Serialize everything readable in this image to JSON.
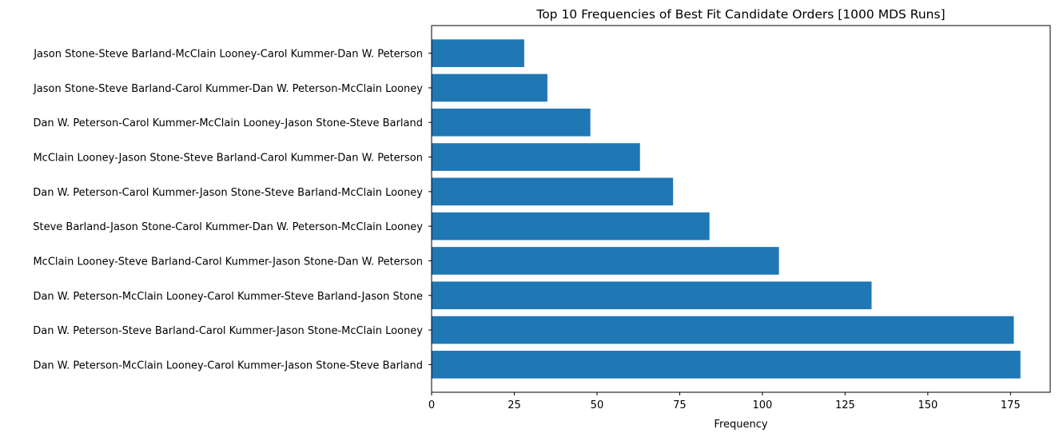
{
  "chart_data": {
    "type": "bar",
    "orientation": "horizontal",
    "title": "Top 10 Frequencies of Best Fit Candidate Orders [1000 MDS Runs]",
    "xlabel": "Frequency",
    "ylabel": "",
    "xlim": [
      0,
      187
    ],
    "xticks": [
      0,
      25,
      50,
      75,
      100,
      125,
      150,
      175
    ],
    "grid": false,
    "bar_color": "#1f77b4",
    "categories": [
      "Dan W. Peterson-McClain Looney-Carol Kummer-Jason Stone-Steve Barland",
      "Dan W. Peterson-Steve Barland-Carol Kummer-Jason Stone-McClain Looney",
      "Dan W. Peterson-McClain Looney-Carol Kummer-Steve Barland-Jason Stone",
      "McClain Looney-Steve Barland-Carol Kummer-Jason Stone-Dan W. Peterson",
      "Steve Barland-Jason Stone-Carol Kummer-Dan W. Peterson-McClain Looney",
      "Dan W. Peterson-Carol Kummer-Jason Stone-Steve Barland-McClain Looney",
      "McClain Looney-Jason Stone-Steve Barland-Carol Kummer-Dan W. Peterson",
      "Dan W. Peterson-Carol Kummer-McClain Looney-Jason Stone-Steve Barland",
      "Jason Stone-Steve Barland-Carol Kummer-Dan W. Peterson-McClain Looney",
      "Jason Stone-Steve Barland-McClain Looney-Carol Kummer-Dan W. Peterson"
    ],
    "values": [
      178,
      176,
      133,
      105,
      84,
      73,
      63,
      48,
      35,
      28
    ]
  }
}
